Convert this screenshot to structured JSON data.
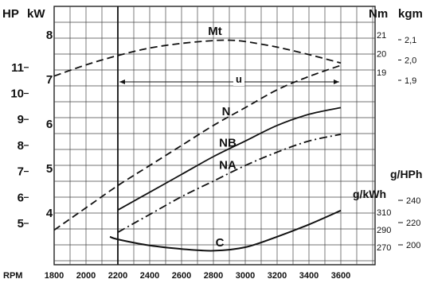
{
  "chart_data": {
    "type": "line",
    "x_axis_label": "RPM",
    "x_ticks": [
      1800,
      2000,
      2200,
      2400,
      2600,
      2800,
      3000,
      3200,
      3400,
      3600
    ],
    "xlim": [
      1700,
      3650
    ],
    "left_units": {
      "hp": "HP",
      "kw": "kW"
    },
    "right_units": {
      "nm": "Nm",
      "kgm": "kgm",
      "ghp": "g/HPh",
      "gkwh": "g/kWh"
    },
    "hp_ticks": [
      "5",
      "6",
      "7",
      "8",
      "9",
      "10",
      "11"
    ],
    "kw_ticks": [
      "4",
      "5",
      "6",
      "7",
      "8"
    ],
    "nm_ticks": [
      "19",
      "20",
      "21"
    ],
    "kgm_ticks": [
      "1,9",
      "2,0",
      "2,1"
    ],
    "gkwh_ticks": [
      "270",
      "290",
      "310"
    ],
    "ghp_ticks": [
      "200",
      "220",
      "240"
    ],
    "range_label": "u",
    "range_rpm": [
      2200,
      3600
    ],
    "series": [
      {
        "name": "N",
        "style": "dashed",
        "unit": "kW",
        "x": [
          1800,
          2000,
          2200,
          2400,
          2600,
          2800,
          3000,
          3200,
          3400,
          3600
        ],
        "values": [
          3.6,
          4.1,
          4.6,
          5.05,
          5.5,
          5.95,
          6.35,
          6.75,
          7.05,
          7.3
        ]
      },
      {
        "name": "NB",
        "style": "solid",
        "unit": "kW",
        "x": [
          2200,
          2400,
          2600,
          2800,
          3000,
          3200,
          3400,
          3600
        ],
        "values": [
          4.05,
          4.45,
          4.85,
          5.25,
          5.6,
          5.95,
          6.2,
          6.35
        ]
      },
      {
        "name": "NA",
        "style": "dashdot",
        "unit": "kW",
        "x": [
          2200,
          2400,
          2600,
          2800,
          3000,
          3200,
          3400,
          3600
        ],
        "values": [
          3.55,
          3.95,
          4.35,
          4.7,
          5.05,
          5.35,
          5.6,
          5.75
        ]
      },
      {
        "name": "Mt",
        "style": "dashed",
        "unit": "Nm",
        "x": [
          1800,
          2000,
          2200,
          2400,
          2600,
          2800,
          2900,
          3000,
          3200,
          3400,
          3600
        ],
        "values": [
          18.8,
          19.4,
          19.9,
          20.3,
          20.55,
          20.7,
          20.72,
          20.65,
          20.35,
          19.95,
          19.5
        ]
      },
      {
        "name": "C",
        "style": "solid",
        "unit": "g/kWh",
        "x": [
          2150,
          2200,
          2400,
          2600,
          2800,
          3000,
          3200,
          3400,
          3600
        ],
        "values": [
          282,
          279,
          272,
          268,
          266,
          270,
          282,
          296,
          312
        ]
      }
    ]
  }
}
